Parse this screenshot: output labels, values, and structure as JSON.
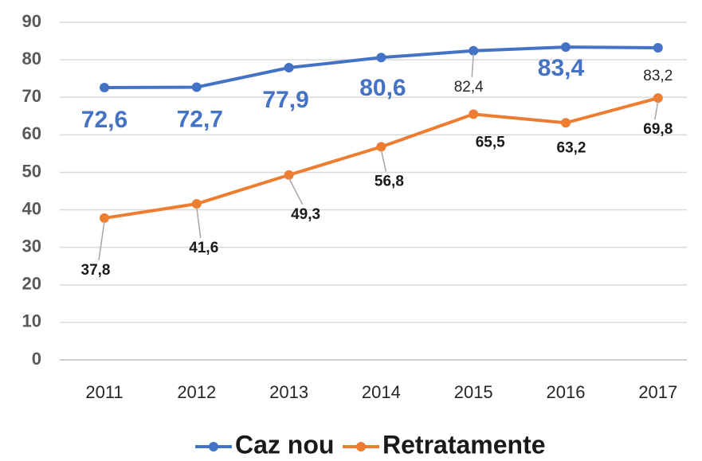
{
  "chart_data": {
    "type": "line",
    "categories": [
      "2011",
      "2012",
      "2013",
      "2014",
      "2015",
      "2016",
      "2017"
    ],
    "series": [
      {
        "name": "Caz nou",
        "color": "#4472c4",
        "values": [
          72.6,
          72.7,
          77.9,
          80.6,
          82.4,
          83.4,
          83.2
        ],
        "value_labels": [
          "72,6",
          "72,7",
          "77,9",
          "80,6",
          "82,4",
          "83,4",
          "83,2"
        ]
      },
      {
        "name": "Retratamente",
        "color": "#ed7d31",
        "values": [
          37.8,
          41.6,
          49.3,
          56.8,
          65.5,
          63.2,
          69.8
        ],
        "value_labels": [
          "37,8",
          "41,6",
          "49,3",
          "56,8",
          "65,5",
          "63,2",
          "69,8"
        ]
      }
    ],
    "ylim": [
      0,
      90
    ],
    "yticks": [
      0,
      10,
      20,
      30,
      40,
      50,
      60,
      70,
      80,
      90
    ],
    "grid": true,
    "legend": "bottom"
  }
}
